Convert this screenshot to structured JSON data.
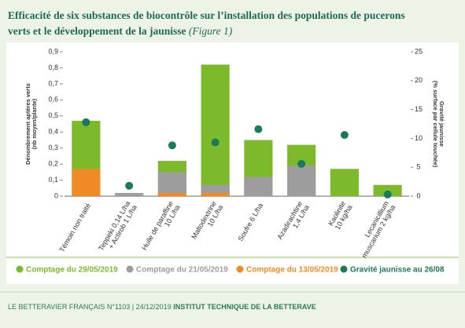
{
  "title_line1": "Efficacité de six substances de biocontrôle sur l’installation des populations de pucerons",
  "title_line2": "verts et le développement de la jaunisse",
  "figure_ref": "(Figure 1)",
  "footer": {
    "publication": "LE BETTERAVIER FRANÇAIS N°1103 | 24/12/2019",
    "publisher": "INSTITUT TECHNIQUE DE LA BETTERAVE"
  },
  "chart_data": {
    "type": "bar",
    "y_label": "Dénombrement aptères verts\n(nb moyen/plante)",
    "y2_label": "Gravité jaunisse\n(% surface par cellule touchée)",
    "categories": [
      "Témoin non traité",
      "Teppeki 0,14 L/ha\n+ Actirob 1 L/ha",
      "Huile de paraffine\n10 L/ha",
      "Maltodextrine\n10 L/ha",
      "Soufre 6 L/ha",
      "Azadirachtine\n1,4 L/ha",
      "Kaolinite\n10 kg/ha",
      "Lecanicillium\nmuscarium 2 kg/ha"
    ],
    "series": [
      {
        "name": "Comptage du 29/05/2019",
        "color": "#7cba2c",
        "values": [
          0.47,
          null,
          0.22,
          0.82,
          0.35,
          0.32,
          0.17,
          0.07
        ]
      },
      {
        "name": "Comptage du 21/05/2019",
        "color": "#9d9d9d",
        "values": [
          null,
          0.02,
          0.15,
          0.07,
          0.12,
          0.19,
          null,
          null
        ]
      },
      {
        "name": "Comptage du 13/05/2019",
        "color": "#f08a24",
        "values": [
          0.17,
          null,
          0.02,
          0.02,
          null,
          null,
          null,
          null
        ]
      },
      {
        "name": "Gravité jaunisse au 26/08",
        "color": "#1b7a5a",
        "type": "scatter",
        "axis": "y2",
        "values": [
          12.8,
          1.8,
          8.8,
          9.3,
          11.6,
          5.6,
          10.6,
          0.3
        ]
      }
    ],
    "ylim": [
      0,
      0.9
    ],
    "yticks": [
      0,
      {
        "value": 0.1,
        "label": "0,1"
      },
      {
        "value": 0.2,
        "label": "0,2"
      },
      {
        "value": 0.3,
        "label": "0,3"
      },
      {
        "value": 0.4,
        "label": "0,4"
      },
      {
        "value": 0.5,
        "label": "0,5"
      },
      {
        "value": 0.6,
        "label": "0,6"
      },
      {
        "value": 0.7,
        "label": "0,7"
      },
      {
        "value": 0.8,
        "label": "0,8"
      },
      {
        "value": 0.9,
        "label": "0,9"
      }
    ],
    "y2lim": [
      0,
      25
    ],
    "y2ticks": [
      0,
      5,
      10,
      15,
      20,
      25
    ]
  }
}
